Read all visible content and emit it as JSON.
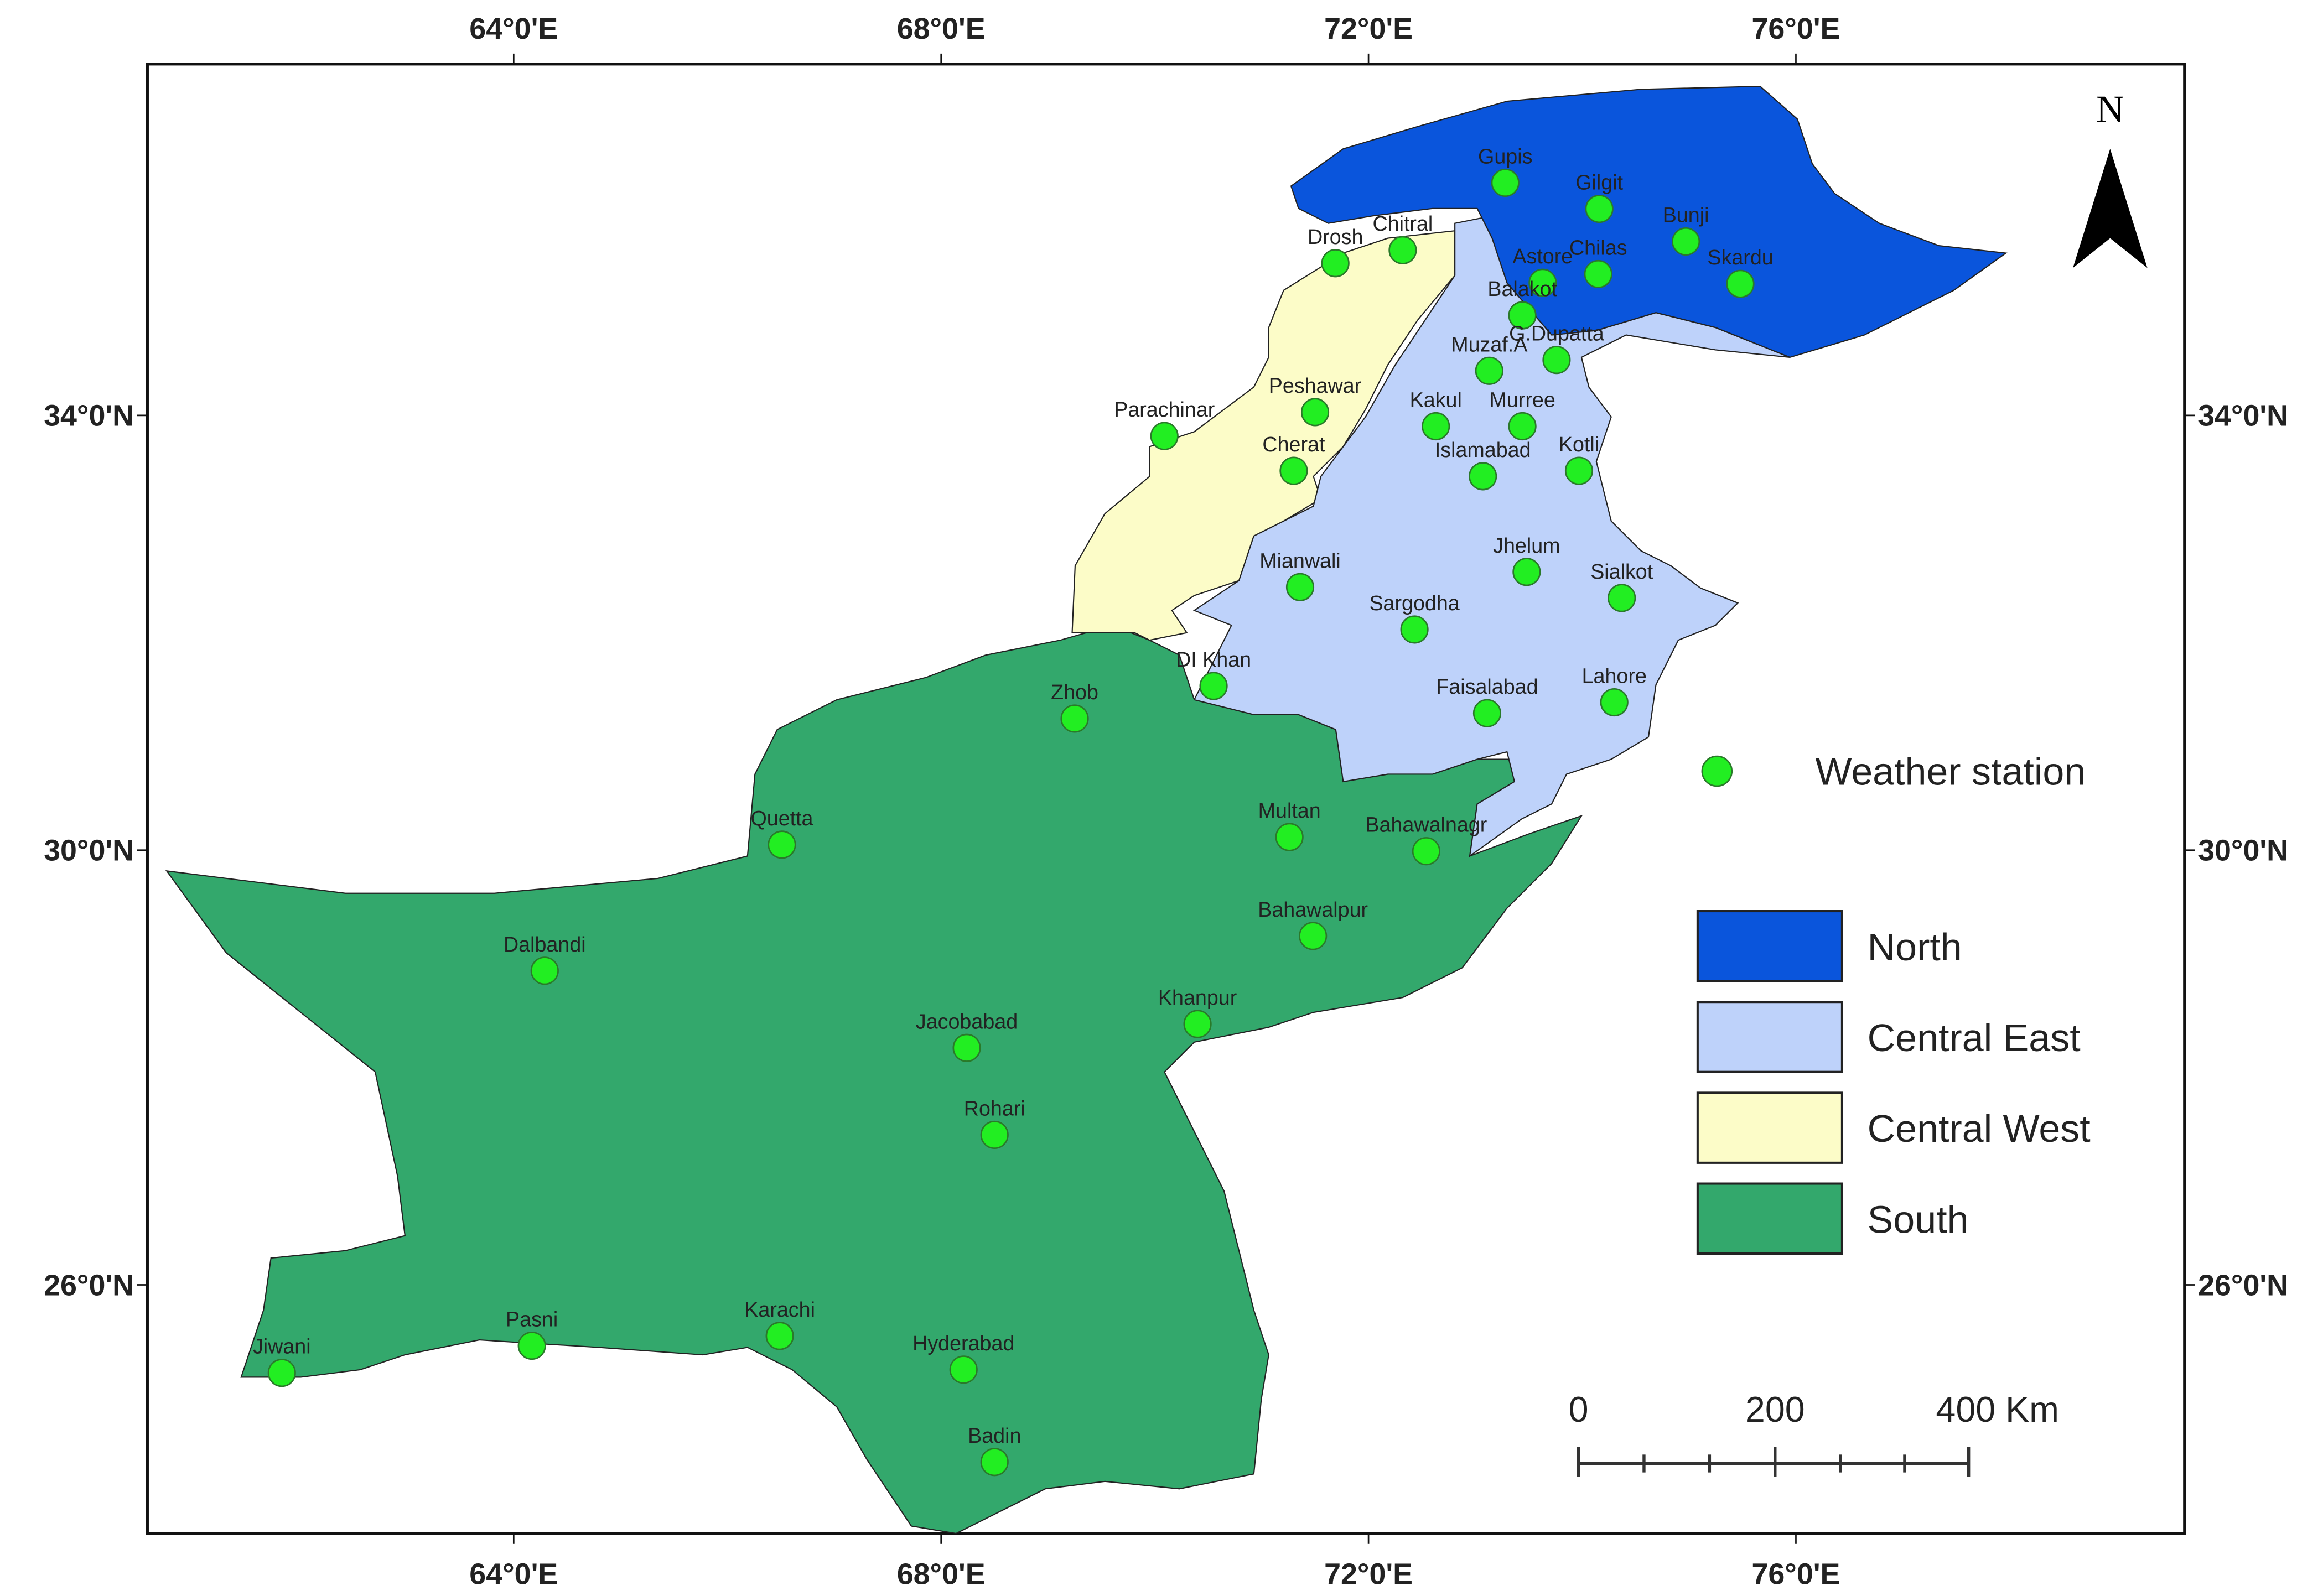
{
  "map": {
    "north": "N",
    "lon_ticks": [
      {
        "value": 64,
        "label": "64°0'E"
      },
      {
        "value": 68,
        "label": "68°0'E"
      },
      {
        "value": 72,
        "label": "72°0'E"
      },
      {
        "value": 76,
        "label": "76°0'E"
      }
    ],
    "lat_ticks": [
      {
        "value": 26,
        "label": "26°0'N"
      },
      {
        "value": 30,
        "label": "30°0'N"
      },
      {
        "value": 34,
        "label": "34°0'N"
      }
    ],
    "regions": [
      {
        "name": "North",
        "color": "#0a55dc"
      },
      {
        "name": "Central East",
        "color": "#bed2fa"
      },
      {
        "name": "Central West",
        "color": "#fcfcc8"
      },
      {
        "name": "South",
        "color": "#33a86c"
      }
    ],
    "station_legend": "Weather station",
    "station_color": "#22ee22",
    "scale_bar": [
      "0",
      "200",
      "400 Km"
    ],
    "stations": [
      {
        "name": "Gupis",
        "lon": 73.28,
        "lat": 36.14
      },
      {
        "name": "Gilgit",
        "lon": 74.16,
        "lat": 35.9
      },
      {
        "name": "Bunji",
        "lon": 74.97,
        "lat": 35.6
      },
      {
        "name": "Skardu",
        "lon": 75.48,
        "lat": 35.21
      },
      {
        "name": "Chilas",
        "lon": 74.15,
        "lat": 35.3
      },
      {
        "name": "Astore",
        "lon": 73.63,
        "lat": 35.22
      },
      {
        "name": "Drosh",
        "lon": 71.69,
        "lat": 35.4
      },
      {
        "name": "Chitral",
        "lon": 72.32,
        "lat": 35.52
      },
      {
        "name": "Balakot",
        "lon": 73.44,
        "lat": 34.92
      },
      {
        "name": "Muzaf.A",
        "lon": 73.13,
        "lat": 34.41
      },
      {
        "name": "G.Dupatta",
        "lon": 73.76,
        "lat": 34.51
      },
      {
        "name": "Peshawar",
        "lon": 71.5,
        "lat": 34.03
      },
      {
        "name": "Parachinar",
        "lon": 70.09,
        "lat": 33.81
      },
      {
        "name": "Kakul",
        "lon": 72.63,
        "lat": 33.9
      },
      {
        "name": "Murree",
        "lon": 73.44,
        "lat": 33.9
      },
      {
        "name": "Cherat",
        "lon": 71.3,
        "lat": 33.49
      },
      {
        "name": "Islamabad",
        "lon": 73.07,
        "lat": 33.44
      },
      {
        "name": "Kotli",
        "lon": 73.97,
        "lat": 33.49
      },
      {
        "name": "Mianwali",
        "lon": 71.36,
        "lat": 32.42
      },
      {
        "name": "Jhelum",
        "lon": 73.48,
        "lat": 32.56
      },
      {
        "name": "Sialkot",
        "lon": 74.37,
        "lat": 32.32
      },
      {
        "name": "Sargodha",
        "lon": 72.43,
        "lat": 32.03
      },
      {
        "name": "DI Khan",
        "lon": 70.55,
        "lat": 31.51
      },
      {
        "name": "Faisalabad",
        "lon": 73.11,
        "lat": 31.26
      },
      {
        "name": "Lahore",
        "lon": 74.3,
        "lat": 31.36
      },
      {
        "name": "Zhob",
        "lon": 69.25,
        "lat": 31.21
      },
      {
        "name": "Quetta",
        "lon": 66.51,
        "lat": 30.05
      },
      {
        "name": "Multan",
        "lon": 71.26,
        "lat": 30.12
      },
      {
        "name": "Bahawalnagr",
        "lon": 72.54,
        "lat": 29.99
      },
      {
        "name": "Bahawalpur",
        "lon": 71.48,
        "lat": 29.21
      },
      {
        "name": "Dalbandi",
        "lon": 64.29,
        "lat": 28.89
      },
      {
        "name": "Khanpur",
        "lon": 70.4,
        "lat": 28.4
      },
      {
        "name": "Jacobabad",
        "lon": 68.24,
        "lat": 28.18
      },
      {
        "name": "Rohari",
        "lon": 68.5,
        "lat": 27.38
      },
      {
        "name": "Pasni",
        "lon": 64.17,
        "lat": 25.44
      },
      {
        "name": "Karachi",
        "lon": 66.49,
        "lat": 25.53
      },
      {
        "name": "Hyderabad",
        "lon": 68.21,
        "lat": 25.22
      },
      {
        "name": "Badin",
        "lon": 68.5,
        "lat": 24.37
      },
      {
        "name": "Jiwani",
        "lon": 61.83,
        "lat": 25.19
      }
    ]
  }
}
